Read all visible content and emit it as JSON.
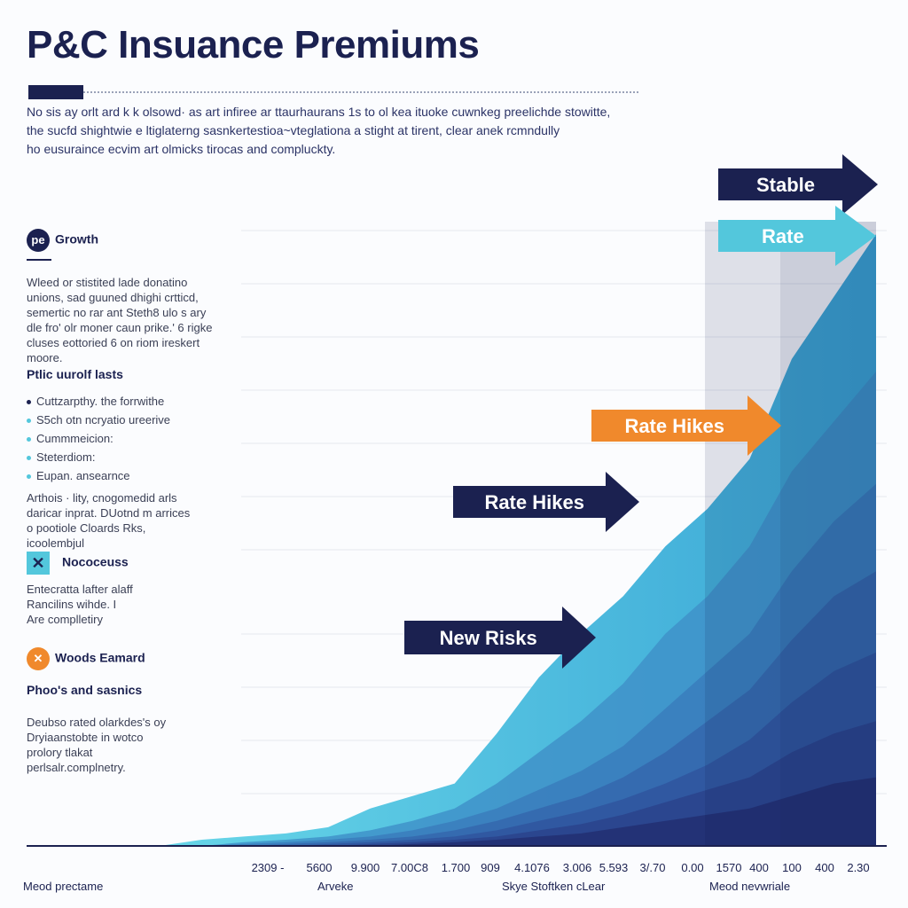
{
  "header": {
    "title": "P&C Insuance Premiums",
    "intro_lines": [
      "No sis ay orlt ard k k olsowd· as art infiree ar ttaurhaurans 1s to ol kea ituoke cuwnkeg preelichde stowitte,",
      "the sucfd shightwie e ltiglaterng sasnkertestioa~vteglationa a stight at tirent, clear anek rcmndully",
      "ho eusuraince ecvim art olmicks tirocas and compluckty."
    ]
  },
  "sidebar": {
    "growth": {
      "icon_text": "pe",
      "label": "Growth",
      "lines": [
        "Wleed or stistited lade donatino",
        "unions, sad guuned dhighi crtticd,",
        "semertic no rar ant Steth8 ulo s ary",
        "dle fro' olr moner caun prike.' 6 rigke",
        "cluses eottoried 6 on riom ireskert",
        "moore."
      ]
    },
    "facts": {
      "heading": "Ptlic uurolf lasts",
      "bullets": [
        "Cuttzarpthy. the forrwithe",
        "S5ch otn ncryatio ureerive",
        "Cummmeicion:",
        "Steterdiom:",
        "Eupan. ansearnce"
      ],
      "lines": [
        "Arthois · lity, cnogomedid arls",
        "daricar inprat. DUotnd m arrices",
        "o pootiole Cloards Rks,",
        "icoolembjul"
      ]
    },
    "nococess": {
      "label": "Nococeuss",
      "lines": [
        "Entecratta lafter alaff",
        "Rancilins wihde.  I",
        "Are complletiry"
      ]
    },
    "woods": {
      "label": "Woods Eamard",
      "heading": "Phoo's and sasnics",
      "lines": [
        "Deubso rated olarkdes's oy",
        "Dryiaanstobte in wotco",
        "prolory tlakat",
        "perlsalr.complnetry."
      ]
    }
  },
  "footer": {
    "left": "Meod prectame",
    "mid1": "Arveke",
    "mid2": "Skye Stoftken cLear",
    "right": "Meod nevwriale"
  },
  "colors": {
    "navy": "#1b2150",
    "teal": "#53c7dc",
    "orange": "#f0892c",
    "area_light": "#5fd0e4",
    "area_dark": "#1f2a6b"
  },
  "chart_data": {
    "type": "area",
    "title": "P&C Insuance Premiums",
    "tick_labels": [
      "2309 -",
      "5600",
      "9.900",
      "7.00C8",
      "1.700",
      "909",
      "4.1076",
      "3.006",
      "5.593",
      "3/.70",
      "0.00",
      "1570",
      "400",
      "100",
      "400",
      "2.30"
    ],
    "y_range": [
      0,
      100
    ],
    "layers": [
      {
        "values": [
          0,
          1,
          1.5,
          2,
          3,
          6,
          8,
          10,
          18,
          27,
          34,
          40,
          48,
          54,
          62,
          78,
          88,
          98
        ]
      },
      {
        "values": [
          0,
          0,
          0.6,
          1,
          1.5,
          2.5,
          4,
          6,
          10,
          15,
          20,
          26,
          34,
          40,
          48,
          60,
          68,
          76
        ]
      },
      {
        "values": [
          0,
          0,
          0.3,
          0.6,
          1,
          1.5,
          2.5,
          4,
          6,
          9,
          12,
          16,
          22,
          28,
          34,
          44,
          52,
          58
        ]
      },
      {
        "values": [
          0,
          0,
          0,
          0.3,
          0.6,
          1,
          1.5,
          2.5,
          4,
          6,
          8,
          11,
          15,
          20,
          25,
          33,
          40,
          44
        ]
      },
      {
        "values": [
          0,
          0,
          0,
          0,
          0.3,
          0.6,
          1,
          1.5,
          2.5,
          4,
          5.5,
          7.5,
          10,
          13,
          17,
          23,
          28,
          31
        ]
      },
      {
        "values": [
          0,
          0,
          0,
          0,
          0,
          0.3,
          0.6,
          1,
          1.5,
          2.5,
          3.5,
          5,
          7,
          9,
          11,
          15,
          18,
          20
        ]
      },
      {
        "values": [
          0,
          0,
          0,
          0,
          0,
          0,
          0.3,
          0.6,
          1,
          1.5,
          2,
          3,
          4,
          5,
          6,
          8,
          10,
          11
        ]
      }
    ],
    "annotations": [
      {
        "text": "Stable",
        "color": "#1b2150"
      },
      {
        "text": "Rate",
        "color": "#53c7dc"
      },
      {
        "text": "Rate Hikes",
        "color": "#f0892c"
      },
      {
        "text": "Rate Hikes",
        "color": "#1b2150"
      },
      {
        "text": "New Risks",
        "color": "#1b2150"
      }
    ]
  }
}
